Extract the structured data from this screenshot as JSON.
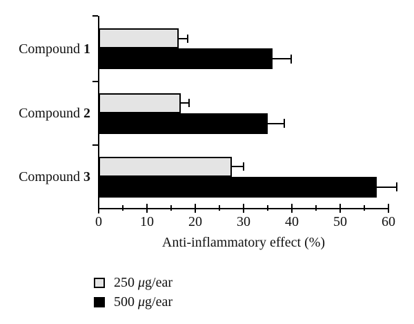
{
  "figure": {
    "background_color": "#ffffff",
    "axis_color": "#000000"
  },
  "chart_data": {
    "type": "bar",
    "orientation": "horizontal",
    "title": "",
    "xlabel": "Anti-inflammatory effect (%)",
    "ylabel": "",
    "xlim": [
      0,
      60
    ],
    "x_major_ticks": [
      0,
      10,
      20,
      30,
      40,
      50,
      60
    ],
    "x_minor_ticks": [
      5,
      15,
      25,
      35,
      45,
      55
    ],
    "grid": false,
    "legend_position": "bottom-left",
    "categories": [
      "Compound 1",
      "Compound 2",
      "Compound 3"
    ],
    "category_label_parts": [
      {
        "word": "Compound",
        "number": "1"
      },
      {
        "word": "Compound",
        "number": "2"
      },
      {
        "word": "Compound",
        "number": "3"
      }
    ],
    "series": [
      {
        "name": "250 μg/ear",
        "color": "#e4e4e4",
        "values": [
          16.5,
          17,
          27.5
        ],
        "errors": [
          2.0,
          1.8,
          2.6
        ]
      },
      {
        "name": "500 μg/ear",
        "color": "#000000",
        "values": [
          36,
          35,
          57.5
        ],
        "errors": [
          4.0,
          3.6,
          4.4
        ]
      }
    ]
  },
  "legend": {
    "items": [
      {
        "amount": "250",
        "mu": "μ",
        "unit": "g/ear",
        "swatch_color": "#e4e4e4"
      },
      {
        "amount": "500",
        "mu": "μ",
        "unit": "g/ear",
        "swatch_color": "#000000"
      }
    ]
  }
}
